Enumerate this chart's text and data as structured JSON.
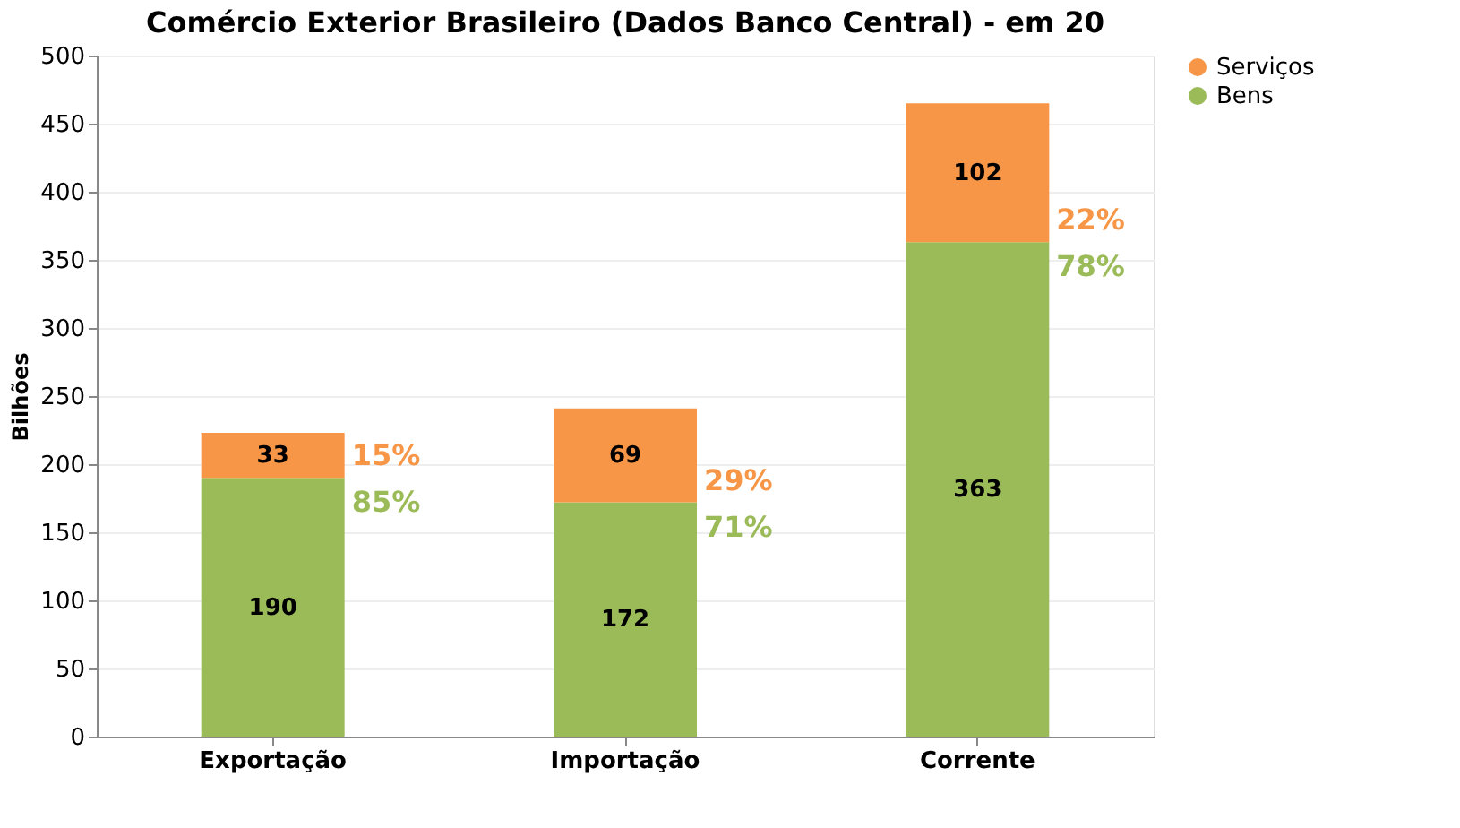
{
  "chart_data": {
    "type": "bar",
    "title": "Comércio Exterior Brasileiro (Dados Banco Central) - em 20",
    "ylabel": "Bilhões",
    "categories": [
      "Exportação",
      "Importação",
      "Corrente"
    ],
    "stacked": true,
    "series": [
      {
        "name": "Bens",
        "color": "#9bbb59",
        "values": [
          190,
          172,
          363
        ]
      },
      {
        "name": "Serviços",
        "color": "#f79646",
        "values": [
          33,
          69,
          102
        ]
      }
    ],
    "annotations": [
      "15%",
      "85%",
      "29%",
      "71%",
      "22%",
      "78%"
    ],
    "ylim": [
      0,
      500
    ],
    "yticks": [
      0,
      50,
      100,
      150,
      200,
      250,
      300,
      350,
      400,
      450,
      500
    ],
    "grid": "y",
    "legend": "right",
    "data_labels": true
  }
}
